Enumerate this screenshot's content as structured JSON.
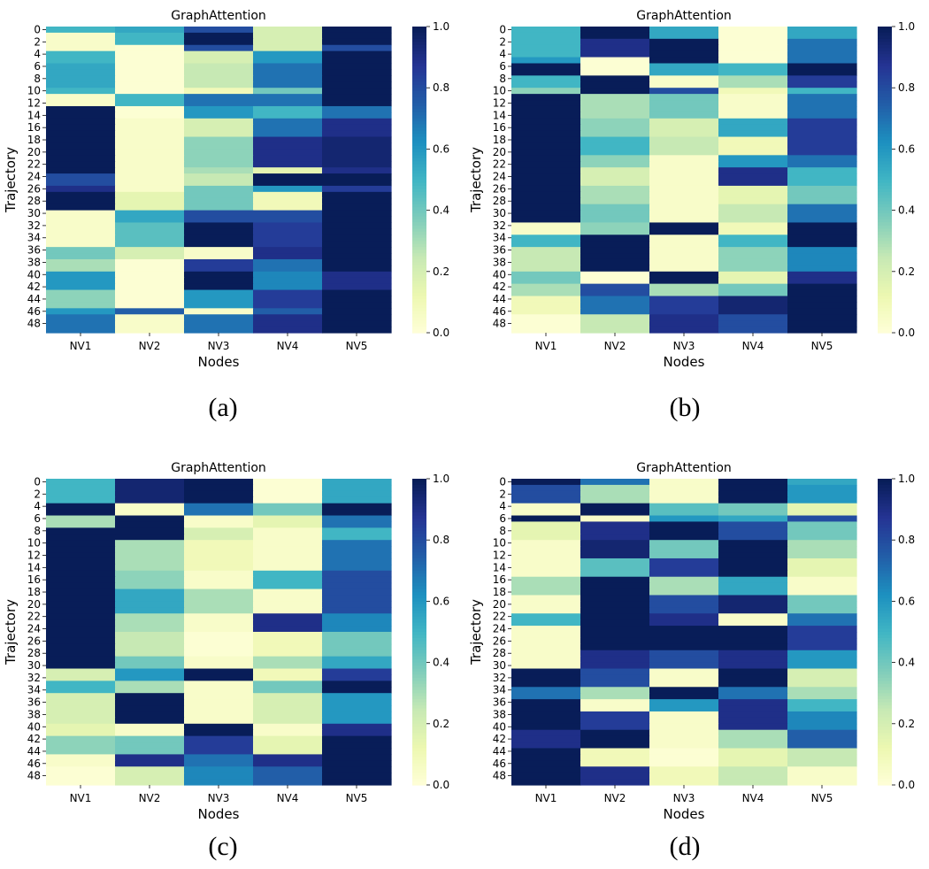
{
  "figure": {
    "captions": [
      "(a)",
      "(b)",
      "(c)",
      "(d)"
    ]
  },
  "colormap": {
    "name": "YlGnBu",
    "stops": [
      "#ffffd9",
      "#edf8b1",
      "#c7e9b4",
      "#7fcdbb",
      "#41b6c4",
      "#1d91c0",
      "#225ea8",
      "#253494",
      "#081d58"
    ]
  },
  "chart_data": [
    {
      "type": "heatmap",
      "title": "GraphAttention",
      "xlabel": "Nodes",
      "ylabel": "Trajectory",
      "columns": [
        "NV1",
        "NV2",
        "NV3",
        "NV4",
        "NV5"
      ],
      "row_count": 50,
      "y_tick_labels": [
        "0",
        "2",
        "4",
        "6",
        "8",
        "10",
        "12",
        "14",
        "16",
        "18",
        "20",
        "22",
        "24",
        "26",
        "28",
        "30",
        "32",
        "34",
        "36",
        "38",
        "40",
        "42",
        "44",
        "46",
        "48"
      ],
      "colorbar": {
        "range": [
          0.0,
          1.0
        ],
        "tick_labels": [
          "0.0",
          "0.2",
          "0.4",
          "0.6",
          "0.8",
          "1.0"
        ]
      },
      "values_by_row_band": [
        {
          "rows": [
            0,
            0
          ],
          "values": [
            0.5,
            0.55,
            0.8,
            0.2,
            1.0
          ]
        },
        {
          "rows": [
            1,
            2
          ],
          "values": [
            0.05,
            0.5,
            1.0,
            0.2,
            1.0
          ]
        },
        {
          "rows": [
            3,
            3
          ],
          "values": [
            0.05,
            0.02,
            0.8,
            0.2,
            0.8
          ]
        },
        {
          "rows": [
            4,
            5
          ],
          "values": [
            0.5,
            0.02,
            0.2,
            0.6,
            1.0
          ]
        },
        {
          "rows": [
            6,
            9
          ],
          "values": [
            0.55,
            0.02,
            0.25,
            0.7,
            1.0
          ]
        },
        {
          "rows": [
            10,
            10
          ],
          "values": [
            0.5,
            0.02,
            0.1,
            0.4,
            1.0
          ]
        },
        {
          "rows": [
            11,
            12
          ],
          "values": [
            0.05,
            0.5,
            0.7,
            0.7,
            1.0
          ]
        },
        {
          "rows": [
            13,
            14
          ],
          "values": [
            1.0,
            0.02,
            0.6,
            0.5,
            0.7
          ]
        },
        {
          "rows": [
            15,
            17
          ],
          "values": [
            1.0,
            0.05,
            0.2,
            0.7,
            0.9
          ]
        },
        {
          "rows": [
            18,
            22
          ],
          "values": [
            1.0,
            0.05,
            0.35,
            0.9,
            0.95
          ]
        },
        {
          "rows": [
            23,
            23
          ],
          "values": [
            1.0,
            0.05,
            0.3,
            0.15,
            0.9
          ]
        },
        {
          "rows": [
            24,
            25
          ],
          "values": [
            0.8,
            0.05,
            0.25,
            1.0,
            1.0
          ]
        },
        {
          "rows": [
            26,
            26
          ],
          "values": [
            0.9,
            0.05,
            0.4,
            0.6,
            0.85
          ]
        },
        {
          "rows": [
            27,
            29
          ],
          "values": [
            1.0,
            0.15,
            0.4,
            0.1,
            1.0
          ]
        },
        {
          "rows": [
            30,
            31
          ],
          "values": [
            0.05,
            0.55,
            0.8,
            0.8,
            1.0
          ]
        },
        {
          "rows": [
            32,
            35
          ],
          "values": [
            0.05,
            0.45,
            1.0,
            0.85,
            1.0
          ]
        },
        {
          "rows": [
            36,
            37
          ],
          "values": [
            0.4,
            0.2,
            0.05,
            0.9,
            1.0
          ]
        },
        {
          "rows": [
            38,
            39
          ],
          "values": [
            0.3,
            0.02,
            0.85,
            0.7,
            1.0
          ]
        },
        {
          "rows": [
            40,
            42
          ],
          "values": [
            0.6,
            0.02,
            1.0,
            0.65,
            0.9
          ]
        },
        {
          "rows": [
            43,
            45
          ],
          "values": [
            0.35,
            0.02,
            0.6,
            0.85,
            1.0
          ]
        },
        {
          "rows": [
            46,
            46
          ],
          "values": [
            0.6,
            0.75,
            0.05,
            0.75,
            1.0
          ]
        },
        {
          "rows": [
            47,
            49
          ],
          "values": [
            0.7,
            0.05,
            0.7,
            0.9,
            1.0
          ]
        }
      ]
    },
    {
      "type": "heatmap",
      "title": "GraphAttention",
      "xlabel": "Nodes",
      "ylabel": "Trajectory",
      "columns": [
        "NV1",
        "NV2",
        "NV3",
        "NV4",
        "NV5"
      ],
      "row_count": 50,
      "y_tick_labels": [
        "0",
        "2",
        "4",
        "6",
        "8",
        "10",
        "12",
        "14",
        "16",
        "18",
        "20",
        "22",
        "24",
        "26",
        "28",
        "30",
        "32",
        "34",
        "36",
        "38",
        "40",
        "42",
        "44",
        "46",
        "48"
      ],
      "colorbar": {
        "range": [
          0.0,
          1.0
        ],
        "tick_labels": [
          "0.0",
          "0.2",
          "0.4",
          "0.6",
          "0.8",
          "1.0"
        ]
      },
      "values_by_row_band": [
        {
          "rows": [
            0,
            1
          ],
          "values": [
            0.5,
            1.0,
            0.55,
            0.02,
            0.55
          ]
        },
        {
          "rows": [
            2,
            4
          ],
          "values": [
            0.5,
            0.9,
            1.0,
            0.02,
            0.7
          ]
        },
        {
          "rows": [
            5,
            5
          ],
          "values": [
            0.6,
            0.02,
            1.0,
            0.02,
            0.7
          ]
        },
        {
          "rows": [
            6,
            7
          ],
          "values": [
            1.0,
            0.02,
            0.55,
            0.5,
            1.0
          ]
        },
        {
          "rows": [
            8,
            9
          ],
          "values": [
            0.5,
            1.0,
            0.05,
            0.3,
            0.85
          ]
        },
        {
          "rows": [
            10,
            10
          ],
          "values": [
            0.35,
            1.0,
            0.8,
            0.1,
            0.5
          ]
        },
        {
          "rows": [
            11,
            14
          ],
          "values": [
            1.0,
            0.3,
            0.4,
            0.05,
            0.7
          ]
        },
        {
          "rows": [
            15,
            17
          ],
          "values": [
            1.0,
            0.35,
            0.2,
            0.55,
            0.85
          ]
        },
        {
          "rows": [
            18,
            20
          ],
          "values": [
            1.0,
            0.5,
            0.25,
            0.1,
            0.85
          ]
        },
        {
          "rows": [
            21,
            22
          ],
          "values": [
            1.0,
            0.35,
            0.05,
            0.6,
            0.7
          ]
        },
        {
          "rows": [
            23,
            25
          ],
          "values": [
            1.0,
            0.2,
            0.05,
            0.9,
            0.5
          ]
        },
        {
          "rows": [
            26,
            28
          ],
          "values": [
            1.0,
            0.3,
            0.05,
            0.15,
            0.4
          ]
        },
        {
          "rows": [
            29,
            31
          ],
          "values": [
            1.0,
            0.4,
            0.05,
            0.25,
            0.7
          ]
        },
        {
          "rows": [
            32,
            33
          ],
          "values": [
            0.05,
            0.35,
            1.0,
            0.1,
            1.0
          ]
        },
        {
          "rows": [
            34,
            35
          ],
          "values": [
            0.5,
            1.0,
            0.05,
            0.5,
            1.0
          ]
        },
        {
          "rows": [
            36,
            39
          ],
          "values": [
            0.25,
            1.0,
            0.05,
            0.35,
            0.65
          ]
        },
        {
          "rows": [
            40,
            41
          ],
          "values": [
            0.4,
            0.02,
            1.0,
            0.15,
            0.9
          ]
        },
        {
          "rows": [
            42,
            43
          ],
          "values": [
            0.3,
            0.8,
            0.3,
            0.4,
            1.0
          ]
        },
        {
          "rows": [
            44,
            46
          ],
          "values": [
            0.1,
            0.7,
            0.85,
            0.95,
            1.0
          ]
        },
        {
          "rows": [
            47,
            49
          ],
          "values": [
            0.02,
            0.25,
            0.9,
            0.8,
            1.0
          ]
        }
      ]
    },
    {
      "type": "heatmap",
      "title": "GraphAttention",
      "xlabel": "Nodes",
      "ylabel": "Trajectory",
      "columns": [
        "NV1",
        "NV2",
        "NV3",
        "NV4",
        "NV5"
      ],
      "row_count": 50,
      "y_tick_labels": [
        "0",
        "2",
        "4",
        "6",
        "8",
        "10",
        "12",
        "14",
        "16",
        "18",
        "20",
        "22",
        "24",
        "26",
        "28",
        "30",
        "32",
        "34",
        "36",
        "38",
        "40",
        "42",
        "44",
        "46",
        "48"
      ],
      "colorbar": {
        "range": [
          0.0,
          1.0
        ],
        "tick_labels": [
          "0.0",
          "0.2",
          "0.4",
          "0.6",
          "0.8",
          "1.0"
        ]
      },
      "values_by_row_band": [
        {
          "rows": [
            0,
            3
          ],
          "values": [
            0.5,
            0.95,
            1.0,
            0.02,
            0.55
          ]
        },
        {
          "rows": [
            4,
            5
          ],
          "values": [
            1.0,
            0.05,
            0.7,
            0.4,
            1.0
          ]
        },
        {
          "rows": [
            6,
            7
          ],
          "values": [
            0.3,
            1.0,
            0.05,
            0.15,
            0.7
          ]
        },
        {
          "rows": [
            8,
            9
          ],
          "values": [
            1.0,
            1.0,
            0.2,
            0.05,
            0.5
          ]
        },
        {
          "rows": [
            10,
            14
          ],
          "values": [
            1.0,
            0.3,
            0.1,
            0.05,
            0.7
          ]
        },
        {
          "rows": [
            15,
            17
          ],
          "values": [
            1.0,
            0.35,
            0.05,
            0.5,
            0.8
          ]
        },
        {
          "rows": [
            18,
            21
          ],
          "values": [
            1.0,
            0.55,
            0.3,
            0.05,
            0.8
          ]
        },
        {
          "rows": [
            22,
            24
          ],
          "values": [
            1.0,
            0.3,
            0.05,
            0.9,
            0.65
          ]
        },
        {
          "rows": [
            25,
            28
          ],
          "values": [
            1.0,
            0.25,
            0.02,
            0.1,
            0.4
          ]
        },
        {
          "rows": [
            29,
            30
          ],
          "values": [
            1.0,
            0.4,
            0.05,
            0.3,
            0.55
          ]
        },
        {
          "rows": [
            31,
            32
          ],
          "values": [
            0.2,
            0.6,
            1.0,
            0.1,
            0.85
          ]
        },
        {
          "rows": [
            33,
            34
          ],
          "values": [
            0.5,
            0.3,
            0.05,
            0.4,
            1.0
          ]
        },
        {
          "rows": [
            35,
            39
          ],
          "values": [
            0.2,
            1.0,
            0.05,
            0.2,
            0.6
          ]
        },
        {
          "rows": [
            40,
            41
          ],
          "values": [
            0.15,
            0.05,
            1.0,
            0.05,
            0.9
          ]
        },
        {
          "rows": [
            42,
            44
          ],
          "values": [
            0.35,
            0.4,
            0.85,
            0.15,
            1.0
          ]
        },
        {
          "rows": [
            45,
            46
          ],
          "values": [
            0.05,
            0.9,
            0.7,
            0.9,
            1.0
          ]
        },
        {
          "rows": [
            47,
            49
          ],
          "values": [
            0.02,
            0.2,
            0.65,
            0.75,
            1.0
          ]
        }
      ]
    },
    {
      "type": "heatmap",
      "title": "GraphAttention",
      "xlabel": "Nodes",
      "ylabel": "Trajectory",
      "columns": [
        "NV1",
        "NV2",
        "NV3",
        "NV4",
        "NV5"
      ],
      "row_count": 50,
      "y_tick_labels": [
        "0",
        "2",
        "4",
        "6",
        "8",
        "10",
        "12",
        "14",
        "16",
        "18",
        "20",
        "22",
        "24",
        "26",
        "28",
        "30",
        "32",
        "34",
        "36",
        "38",
        "40",
        "42",
        "44",
        "46",
        "48"
      ],
      "colorbar": {
        "range": [
          0.0,
          1.0
        ],
        "tick_labels": [
          "0.0",
          "0.2",
          "0.4",
          "0.6",
          "0.8",
          "1.0"
        ]
      },
      "values_by_row_band": [
        {
          "rows": [
            0,
            0
          ],
          "values": [
            1.0,
            0.7,
            0.05,
            1.0,
            0.55
          ]
        },
        {
          "rows": [
            1,
            3
          ],
          "values": [
            0.8,
            0.3,
            0.05,
            1.0,
            0.6
          ]
        },
        {
          "rows": [
            4,
            5
          ],
          "values": [
            0.05,
            1.0,
            0.45,
            0.4,
            0.15
          ]
        },
        {
          "rows": [
            6,
            6
          ],
          "values": [
            1.0,
            0.05,
            0.6,
            0.55,
            0.8
          ]
        },
        {
          "rows": [
            7,
            9
          ],
          "values": [
            0.15,
            0.9,
            1.0,
            0.8,
            0.4
          ]
        },
        {
          "rows": [
            10,
            12
          ],
          "values": [
            0.05,
            0.95,
            0.4,
            1.0,
            0.3
          ]
        },
        {
          "rows": [
            13,
            15
          ],
          "values": [
            0.05,
            0.45,
            0.85,
            1.0,
            0.15
          ]
        },
        {
          "rows": [
            16,
            18
          ],
          "values": [
            0.3,
            1.0,
            0.3,
            0.55,
            0.05
          ]
        },
        {
          "rows": [
            19,
            21
          ],
          "values": [
            0.05,
            1.0,
            0.8,
            0.95,
            0.4
          ]
        },
        {
          "rows": [
            22,
            23
          ],
          "values": [
            0.5,
            1.0,
            0.9,
            0.05,
            0.7
          ]
        },
        {
          "rows": [
            24,
            27
          ],
          "values": [
            0.05,
            1.0,
            1.0,
            1.0,
            0.85
          ]
        },
        {
          "rows": [
            28,
            30
          ],
          "values": [
            0.05,
            0.9,
            0.8,
            0.9,
            0.6
          ]
        },
        {
          "rows": [
            31,
            33
          ],
          "values": [
            1.0,
            0.8,
            0.05,
            1.0,
            0.2
          ]
        },
        {
          "rows": [
            34,
            35
          ],
          "values": [
            0.7,
            0.3,
            1.0,
            0.7,
            0.3
          ]
        },
        {
          "rows": [
            36,
            37
          ],
          "values": [
            1.0,
            0.05,
            0.6,
            0.9,
            0.5
          ]
        },
        {
          "rows": [
            38,
            40
          ],
          "values": [
            1.0,
            0.85,
            0.05,
            0.9,
            0.65
          ]
        },
        {
          "rows": [
            41,
            43
          ],
          "values": [
            0.9,
            1.0,
            0.05,
            0.3,
            0.75
          ]
        },
        {
          "rows": [
            44,
            46
          ],
          "values": [
            1.0,
            0.1,
            0.02,
            0.15,
            0.25
          ]
        },
        {
          "rows": [
            47,
            49
          ],
          "values": [
            1.0,
            0.9,
            0.1,
            0.25,
            0.05
          ]
        }
      ]
    }
  ]
}
